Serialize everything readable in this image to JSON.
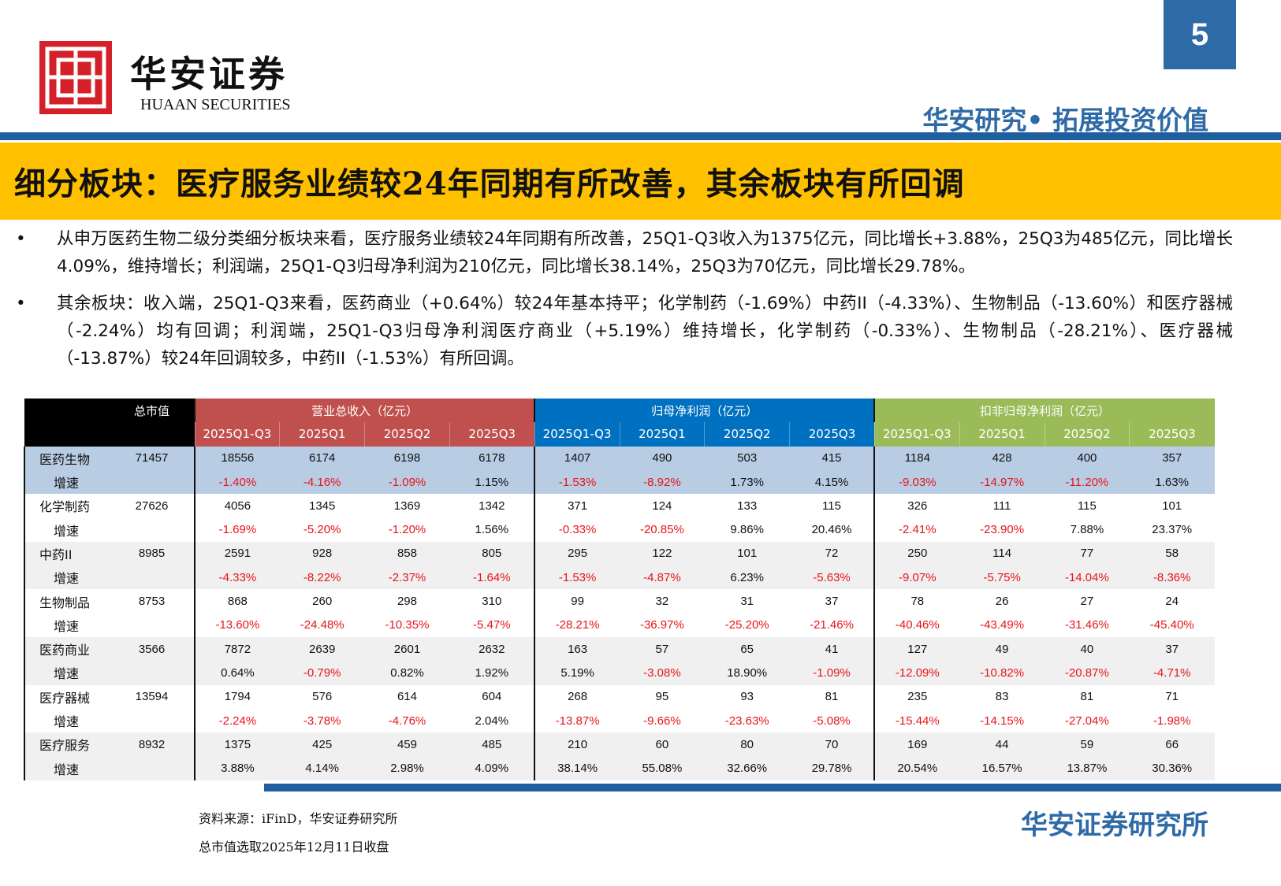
{
  "header": {
    "brand_cn": "华安证券",
    "brand_en": "HUAAN SECURITIES",
    "page_number": "5",
    "slogan": "华安研究• 拓展投资价值"
  },
  "title": "细分板块：医疗服务业绩较24年同期有所改善，其余板块有所回调",
  "bullets": [
    "从申万医药生物二级分类细分板块来看，医疗服务业绩较24年同期有所改善，25Q1-Q3收入为1375亿元，同比增长+3.88%，25Q3为485亿元，同比增长4.09%，维持增长；利润端，25Q1-Q3归母净利润为210亿元，同比增长38.14%，25Q3为70亿元，同比增长29.78%。",
    "其余板块：收入端，25Q1-Q3来看，医药商业（+0.64%）较24年基本持平；化学制药（-1.69%）中药II（-4.33%）、生物制品（-13.60%）和医疗器械（-2.24%）均有回调；利润端，25Q1-Q3归母净利润医疗商业（+5.19%）维持增长，化学制药（-0.33%）、生物制品（-28.21%）、医疗器械（-13.87%）较24年回调较多，中药II（-1.53%）有所回调。"
  ],
  "table": {
    "mcap_header": "总市值",
    "groups": [
      "营业总收入（亿元）",
      "归母净利润（亿元）",
      "扣非归母净利润（亿元）"
    ],
    "periods": [
      "2025Q1-Q3",
      "2025Q1",
      "2025Q2",
      "2025Q3"
    ],
    "growth_label": "增速",
    "rows": [
      {
        "name": "医药生物",
        "mcap": "71457",
        "values": [
          "18556",
          "6174",
          "6198",
          "6178",
          "1407",
          "490",
          "503",
          "415",
          "1184",
          "428",
          "400",
          "357"
        ],
        "growth": [
          "-1.40%",
          "-4.16%",
          "-1.09%",
          "1.15%",
          "-1.53%",
          "-8.92%",
          "1.73%",
          "4.15%",
          "-9.03%",
          "-14.97%",
          "-11.20%",
          "1.63%"
        ]
      },
      {
        "name": "化学制药",
        "mcap": "27626",
        "values": [
          "4056",
          "1345",
          "1369",
          "1342",
          "371",
          "124",
          "133",
          "115",
          "326",
          "111",
          "115",
          "101"
        ],
        "growth": [
          "-1.69%",
          "-5.20%",
          "-1.20%",
          "1.56%",
          "-0.33%",
          "-20.85%",
          "9.86%",
          "20.46%",
          "-2.41%",
          "-23.90%",
          "7.88%",
          "23.37%"
        ]
      },
      {
        "name": "中药II",
        "mcap": "8985",
        "values": [
          "2591",
          "928",
          "858",
          "805",
          "295",
          "122",
          "101",
          "72",
          "250",
          "114",
          "77",
          "58"
        ],
        "growth": [
          "-4.33%",
          "-8.22%",
          "-2.37%",
          "-1.64%",
          "-1.53%",
          "-4.87%",
          "6.23%",
          "-5.63%",
          "-9.07%",
          "-5.75%",
          "-14.04%",
          "-8.36%"
        ]
      },
      {
        "name": "生物制品",
        "mcap": "8753",
        "values": [
          "868",
          "260",
          "298",
          "310",
          "99",
          "32",
          "31",
          "37",
          "78",
          "26",
          "27",
          "24"
        ],
        "growth": [
          "-13.60%",
          "-24.48%",
          "-10.35%",
          "-5.47%",
          "-28.21%",
          "-36.97%",
          "-25.20%",
          "-21.46%",
          "-40.46%",
          "-43.49%",
          "-31.46%",
          "-45.40%"
        ]
      },
      {
        "name": "医药商业",
        "mcap": "3566",
        "values": [
          "7872",
          "2639",
          "2601",
          "2632",
          "163",
          "57",
          "65",
          "41",
          "127",
          "49",
          "40",
          "37"
        ],
        "growth": [
          "0.64%",
          "-0.79%",
          "0.82%",
          "1.92%",
          "5.19%",
          "-3.08%",
          "18.90%",
          "-1.09%",
          "-12.09%",
          "-10.82%",
          "-20.87%",
          "-4.71%"
        ]
      },
      {
        "name": "医疗器械",
        "mcap": "13594",
        "values": [
          "1794",
          "576",
          "614",
          "604",
          "268",
          "95",
          "93",
          "81",
          "235",
          "83",
          "81",
          "71"
        ],
        "growth": [
          "-2.24%",
          "-3.78%",
          "-4.76%",
          "2.04%",
          "-13.87%",
          "-9.66%",
          "-23.63%",
          "-5.08%",
          "-15.44%",
          "-14.15%",
          "-27.04%",
          "-1.98%"
        ]
      },
      {
        "name": "医疗服务",
        "mcap": "8932",
        "values": [
          "1375",
          "425",
          "459",
          "485",
          "210",
          "60",
          "80",
          "70",
          "169",
          "44",
          "59",
          "66"
        ],
        "growth": [
          "3.88%",
          "4.14%",
          "2.98%",
          "4.09%",
          "38.14%",
          "55.08%",
          "32.66%",
          "29.78%",
          "20.54%",
          "16.57%",
          "13.87%",
          "30.36%"
        ]
      }
    ]
  },
  "source": [
    "资料来源：iFinD，华安证券研究所",
    "总市值选取2025年12月11日收盘"
  ],
  "footer_brand": "华安证券研究所",
  "colors": {
    "brand_blue": "#2e6aa6",
    "title_bg": "#ffc000",
    "negative": "#e8141b"
  }
}
